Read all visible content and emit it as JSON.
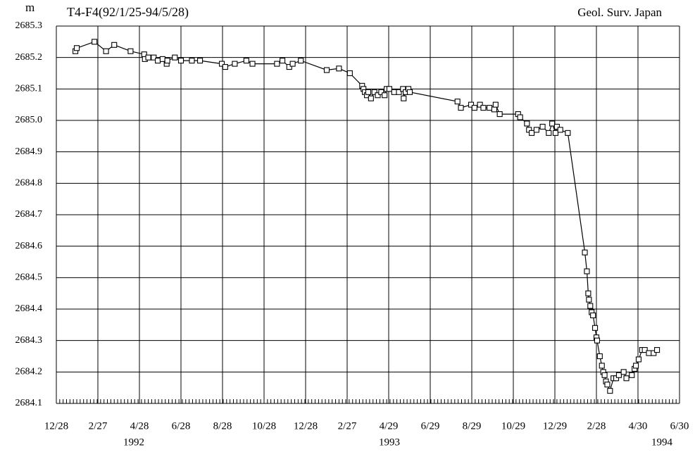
{
  "chart_data": {
    "type": "line",
    "title": "T4-F4(92/1/25-94/5/28)",
    "unit_label": "m",
    "source": "Geol. Surv. Japan",
    "color": "#000000",
    "grid": true,
    "year_labels": [
      "1992",
      "1993",
      "1994"
    ],
    "xlim": [
      "1991-12-28",
      "1994-06-30"
    ],
    "xticks": [
      {
        "value": "1991-12-28",
        "label": "12/28"
      },
      {
        "value": "1992-02-27",
        "label": "2/27"
      },
      {
        "value": "1992-04-28",
        "label": "4/28"
      },
      {
        "value": "1992-06-28",
        "label": "6/28"
      },
      {
        "value": "1992-08-28",
        "label": "8/28"
      },
      {
        "value": "1992-10-28",
        "label": "10/28"
      },
      {
        "value": "1992-12-28",
        "label": "12/28"
      },
      {
        "value": "1993-02-27",
        "label": "2/27"
      },
      {
        "value": "1993-04-29",
        "label": "4/29"
      },
      {
        "value": "1993-06-29",
        "label": "6/29"
      },
      {
        "value": "1993-08-29",
        "label": "8/29"
      },
      {
        "value": "1993-10-29",
        "label": "10/29"
      },
      {
        "value": "1993-12-29",
        "label": "12/29"
      },
      {
        "value": "1994-02-28",
        "label": "2/28"
      },
      {
        "value": "1994-04-30",
        "label": "4/30"
      },
      {
        "value": "1994-06-30",
        "label": "6/30"
      }
    ],
    "ylim": [
      2684.1,
      2685.3
    ],
    "yticks": [
      2684.1,
      2684.2,
      2684.3,
      2684.4,
      2684.5,
      2684.6,
      2684.7,
      2684.8,
      2684.9,
      {
        "value": 2685,
        "label": "2685.0"
      },
      2685.1,
      2685.2,
      2685.3
    ],
    "x": [
      "1992-01-25",
      "1992-01-27",
      "1992-02-22",
      "1992-03-10",
      "1992-03-22",
      "1992-04-15",
      "1992-05-05",
      "1992-05-06",
      "1992-05-11",
      "1992-05-19",
      "1992-05-25",
      "1992-06-01",
      "1992-06-07",
      "1992-06-08",
      "1992-06-19",
      "1992-06-28",
      "1992-07-14",
      "1992-07-26",
      "1992-08-27",
      "1992-09-01",
      "1992-09-15",
      "1992-10-02",
      "1992-10-11",
      "1992-11-16",
      "1992-11-24",
      "1992-12-04",
      "1992-12-09",
      "1992-12-21",
      "1993-01-28",
      "1993-02-15",
      "1993-03-03",
      "1993-03-21",
      "1993-03-23",
      "1993-03-25",
      "1993-03-28",
      "1993-03-30",
      "1993-04-03",
      "1993-04-08",
      "1993-04-13",
      "1993-04-18",
      "1993-04-23",
      "1993-04-26",
      "1993-04-30",
      "1993-05-07",
      "1993-05-14",
      "1993-05-20",
      "1993-05-21",
      "1993-05-24",
      "1993-05-28",
      "1993-05-30",
      "1993-08-08",
      "1993-08-13",
      "1993-08-28",
      "1993-09-02",
      "1993-09-10",
      "1993-09-15",
      "1993-09-24",
      "1993-10-01",
      "1993-10-03",
      "1993-10-09",
      "1993-11-05",
      "1993-11-08",
      "1993-11-18",
      "1993-11-21",
      "1993-11-25",
      "1993-12-02",
      "1993-12-11",
      "1993-12-20",
      "1993-12-25",
      "1993-12-30",
      "1994-01-01",
      "1994-01-06",
      "1994-01-17",
      "1994-02-11",
      "1994-02-14",
      "1994-02-16",
      "1994-02-17",
      "1994-02-19",
      "1994-02-21",
      "1994-02-23",
      "1994-02-26",
      "1994-02-28",
      "1994-03-01",
      "1994-03-05",
      "1994-03-08",
      "1994-03-10",
      "1994-03-12",
      "1994-03-14",
      "1994-03-16",
      "1994-03-20",
      "1994-03-25",
      "1994-03-29",
      "1994-04-02",
      "1994-04-09",
      "1994-04-13",
      "1994-04-21",
      "1994-04-25",
      "1994-04-27",
      "1994-05-01",
      "1994-05-06",
      "1994-05-10",
      "1994-05-16",
      "1994-05-23",
      "1994-05-28"
    ],
    "values": [
      2685.22,
      2685.23,
      2685.25,
      2685.22,
      2685.24,
      2685.22,
      2685.21,
      2685.195,
      2685.2,
      2685.2,
      2685.19,
      2685.195,
      2685.18,
      2685.19,
      2685.2,
      2685.19,
      2685.19,
      2685.19,
      2685.18,
      2685.17,
      2685.18,
      2685.19,
      2685.18,
      2685.18,
      2685.19,
      2685.17,
      2685.18,
      2685.19,
      2685.16,
      2685.165,
      2685.15,
      2685.11,
      2685.1,
      2685.09,
      2685.08,
      2685.09,
      2685.07,
      2685.09,
      2685.08,
      2685.09,
      2685.08,
      2685.1,
      2685.1,
      2685.09,
      2685.09,
      2685.1,
      2685.07,
      2685.09,
      2685.1,
      2685.09,
      2685.06,
      2685.04,
      2685.05,
      2685.04,
      2685.05,
      2685.04,
      2685.04,
      2685.035,
      2685.05,
      2685.02,
      2685.02,
      2685.01,
      2684.99,
      2684.97,
      2684.96,
      2684.97,
      2684.98,
      2684.96,
      2684.99,
      2684.96,
      2684.98,
      2684.97,
      2684.96,
      2684.58,
      2684.52,
      2684.45,
      2684.43,
      2684.41,
      2684.39,
      2684.38,
      2684.34,
      2684.31,
      2684.3,
      2684.25,
      2684.22,
      2684.2,
      2684.19,
      2684.17,
      2684.16,
      2684.14,
      2684.18,
      2684.18,
      2684.19,
      2684.2,
      2684.18,
      2684.19,
      2684.21,
      2684.22,
      2684.24,
      2684.27,
      2684.27,
      2684.26,
      2684.26,
      2684.27
    ]
  }
}
